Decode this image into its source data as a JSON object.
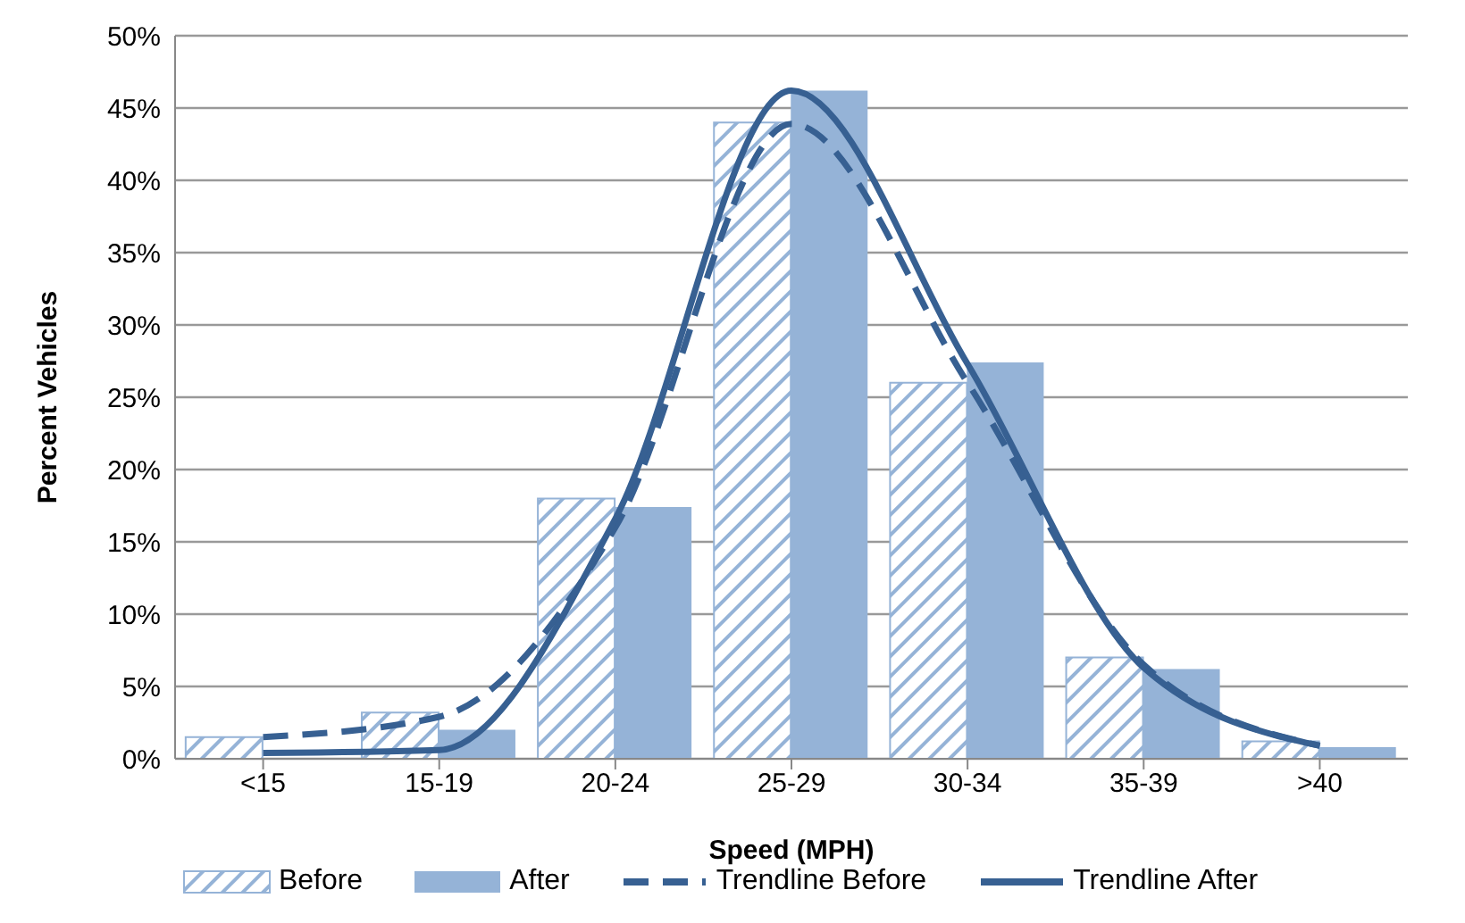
{
  "chart_data": {
    "type": "bar",
    "xlabel": "Speed (MPH)",
    "ylabel": "Percent Vehicles",
    "categories": [
      "<15",
      "15-19",
      "20-24",
      "25-29",
      "30-34",
      "35-39",
      ">40"
    ],
    "series": [
      {
        "name": "Before",
        "color": "#95b3d7",
        "values": [
          1.5,
          3.2,
          18,
          44,
          26,
          7,
          1.2
        ]
      },
      {
        "name": "After",
        "color": "#95b3d7",
        "values": [
          0,
          2,
          17.4,
          46.2,
          27.4,
          6.2,
          0.8
        ]
      },
      {
        "name": "Trendline Before",
        "type": "line",
        "line_style": "dashed",
        "color": "#376092",
        "values": [
          1.5,
          2.9,
          16,
          43.9,
          26,
          6.5,
          0.9
        ]
      },
      {
        "name": "Trendline After",
        "type": "line",
        "line_style": "solid",
        "color": "#376092",
        "values": [
          0.4,
          0.6,
          16.6,
          46.2,
          27.3,
          6.3,
          0.9
        ]
      }
    ],
    "ylim": [
      0,
      50
    ],
    "yticks": [
      {
        "value": 0,
        "label": "0%"
      },
      {
        "value": 5,
        "label": "5%"
      },
      {
        "value": 10,
        "label": "10%"
      },
      {
        "value": 15,
        "label": "15%"
      },
      {
        "value": 20,
        "label": "20%"
      },
      {
        "value": 25,
        "label": "25%"
      },
      {
        "value": 30,
        "label": "30%"
      },
      {
        "value": 35,
        "label": "35%"
      },
      {
        "value": 40,
        "label": "40%"
      },
      {
        "value": 45,
        "label": "45%"
      },
      {
        "value": 50,
        "label": "50%"
      }
    ],
    "grid": "y",
    "legend": "bottom",
    "marker": "none"
  }
}
